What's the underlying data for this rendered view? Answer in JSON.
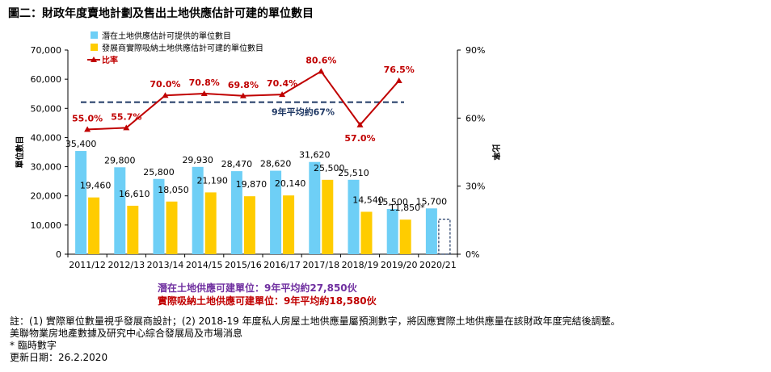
{
  "title": "圖二：財政年度賣地計劃及售出土地供應估計可建的單位數目",
  "chart_data": {
    "type": "bar",
    "categories": [
      "2011/12",
      "2012/13",
      "2013/14",
      "2014/15",
      "2015/16",
      "2016/17",
      "2017/18",
      "2018/19",
      "2019/20",
      "2020/21"
    ],
    "series": [
      {
        "name": "潛在土地供應估計可提供的單位數目",
        "type": "bar",
        "axis": "left",
        "color": "#6ecff6",
        "values": [
          35400,
          29800,
          25800,
          29930,
          28470,
          28620,
          31620,
          25510,
          15500,
          15700
        ],
        "labels": [
          "35,400",
          "29,800",
          "25,800",
          "29,930",
          "28,470",
          "28,620",
          "31,620",
          "25,510",
          "15,500",
          "15,700"
        ]
      },
      {
        "name": "發展商實際吸納土地供應估計可建的單位數目",
        "type": "bar",
        "axis": "left",
        "color": "#ffcc00",
        "values": [
          19460,
          16610,
          18050,
          21190,
          19870,
          20140,
          25500,
          14540,
          11850,
          null
        ],
        "labels": [
          "19,460",
          "16,610",
          "18,050",
          "21,190",
          "19,870",
          "20,140",
          "25,500",
          "14,540",
          "11,850*",
          ""
        ]
      },
      {
        "name": "比率",
        "type": "line",
        "axis": "right",
        "color": "#c00000",
        "values": [
          55.0,
          55.7,
          70.0,
          70.8,
          69.8,
          70.4,
          80.6,
          57.0,
          76.5,
          null
        ],
        "labels": [
          "55.0%",
          "55.7%",
          "70.0%",
          "70.8%",
          "69.8%",
          "70.4%",
          "80.6%",
          "57.0%",
          "76.5%",
          ""
        ]
      }
    ],
    "pending_bar": {
      "category": "2020/21",
      "value": 12000,
      "style": "dashed-outline"
    },
    "average_line": {
      "value": 67,
      "axis": "right",
      "label": "9年平均約67%",
      "color": "#1f3864"
    },
    "ylabel": "單位數目",
    "y2label": "比率",
    "ylim": [
      0,
      70000
    ],
    "y2lim": [
      0,
      90
    ],
    "yticks": [
      0,
      10000,
      20000,
      30000,
      40000,
      50000,
      60000,
      70000
    ],
    "ytick_labels": [
      "0",
      "10,000",
      "20,000",
      "30,000",
      "40,000",
      "50,000",
      "60,000",
      "70,000"
    ],
    "y2ticks": [
      0,
      30,
      60,
      90
    ],
    "y2tick_labels": [
      "0%",
      "30%",
      "60%",
      "90%"
    ],
    "legend_position": "top-left"
  },
  "summary": {
    "line1": "潛在土地供應可建單位：9年平均約27,850伙",
    "line2": "實際吸納土地供應可建單位：9年平均約18,580伙"
  },
  "notes": {
    "line1": "註：(1) 實際單位數量視乎發展商設計；(2) 2018-19 年度私人房屋土地供應量屬預測數字，將因應實際土地供應量在該財政年度完結後調整。",
    "line2": "美聯物業房地產數據及研究中心綜合發展局及市場消息",
    "line3": "* 臨時數字",
    "line4": "更新日期：26.2.2020"
  }
}
